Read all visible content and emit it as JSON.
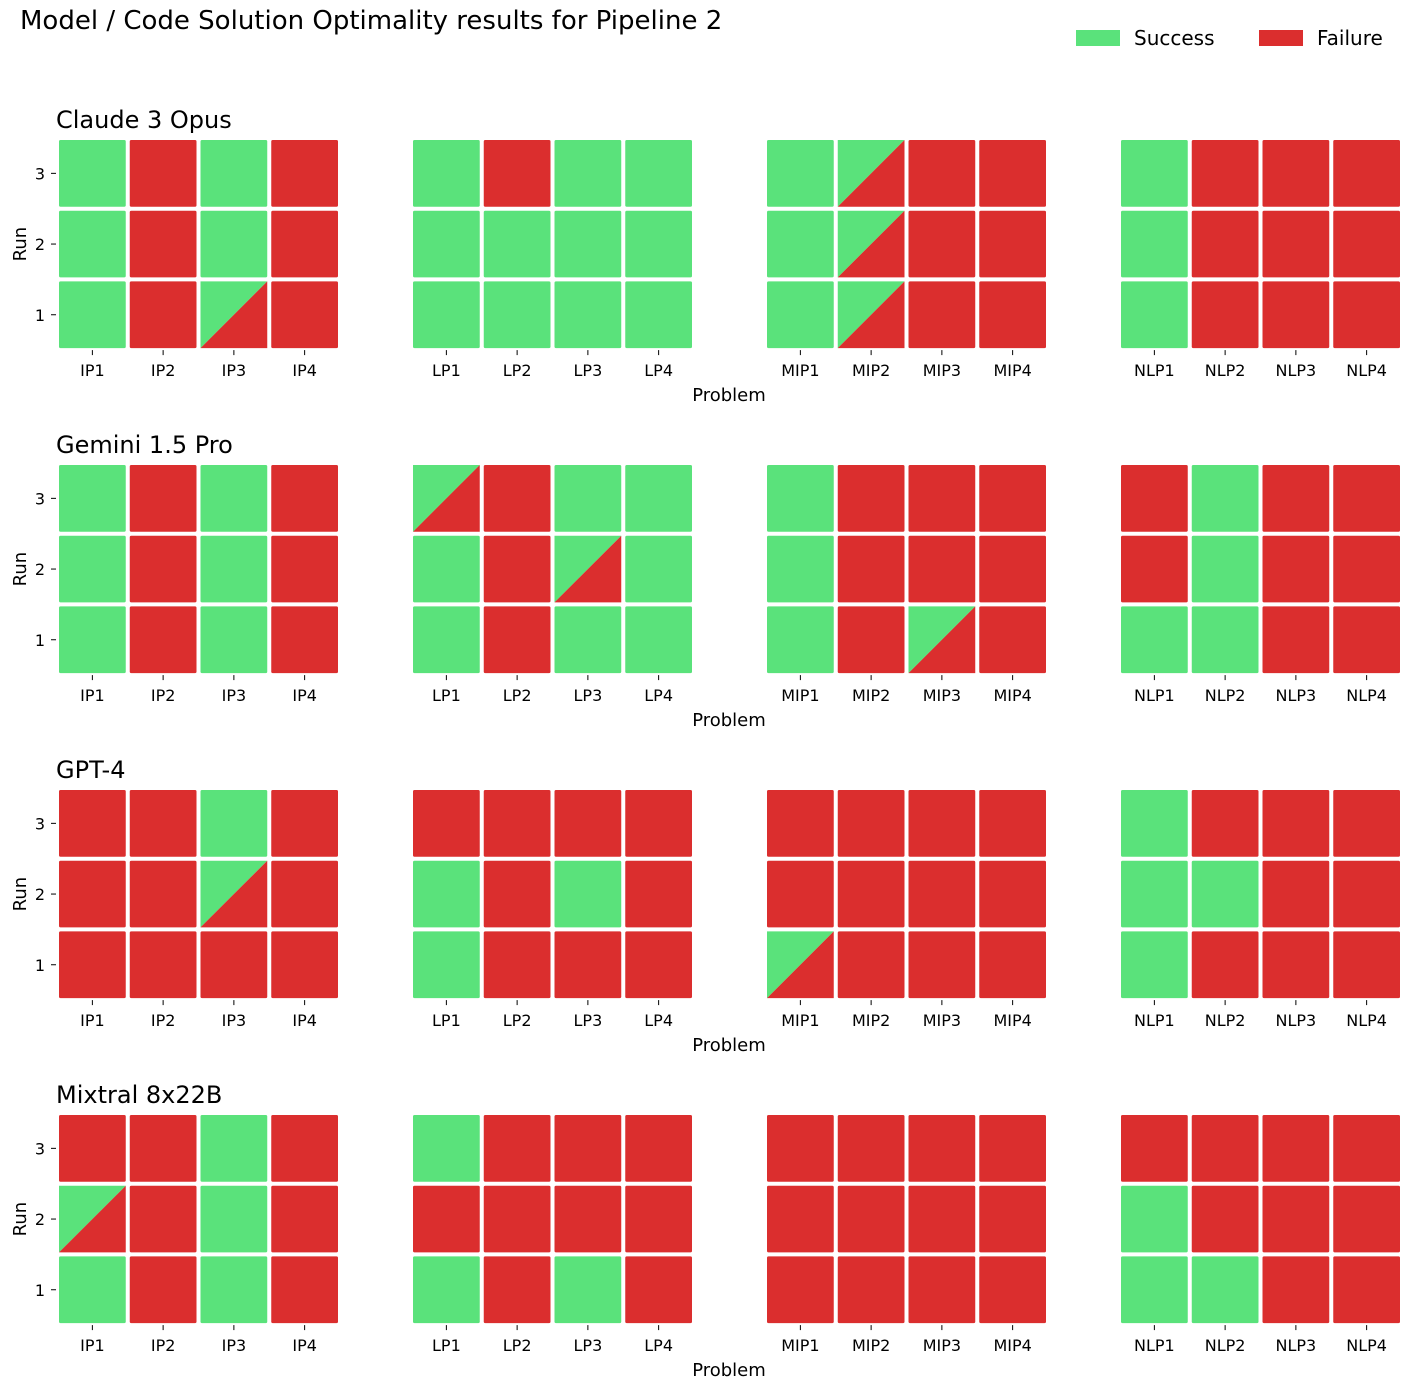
{
  "chart_data": {
    "type": "heatmap",
    "title": "Model / Code Solution Optimality results for Pipeline 2",
    "xlabel": "Problem",
    "ylabel": "Run",
    "legend": {
      "position": "top-right",
      "entries": [
        {
          "label": "Success",
          "color": "#5ae27b"
        },
        {
          "label": "Failure",
          "color": "#db2e2e"
        }
      ]
    },
    "colors": {
      "success": "#5ae27b",
      "failure": "#db2e2e"
    },
    "cell_values": "S = success, F = failure, H = half success / half failure (diagonal split)",
    "runs": [
      "1",
      "2",
      "3"
    ],
    "problem_groups": [
      [
        "IP1",
        "IP2",
        "IP3",
        "IP4"
      ],
      [
        "LP1",
        "LP2",
        "LP3",
        "LP4"
      ],
      [
        "MIP1",
        "MIP2",
        "MIP3",
        "MIP4"
      ],
      [
        "NLP1",
        "NLP2",
        "NLP3",
        "NLP4"
      ]
    ],
    "models": [
      {
        "name": "Claude 3 Opus",
        "results": [
          [
            [
              "S",
              "F",
              "H",
              "F"
            ],
            [
              "S",
              "F",
              "S",
              "F"
            ],
            [
              "S",
              "F",
              "S",
              "F"
            ]
          ],
          [
            [
              "S",
              "S",
              "S",
              "S"
            ],
            [
              "S",
              "S",
              "S",
              "S"
            ],
            [
              "S",
              "F",
              "S",
              "S"
            ]
          ],
          [
            [
              "S",
              "H",
              "F",
              "F"
            ],
            [
              "S",
              "H",
              "F",
              "F"
            ],
            [
              "S",
              "H",
              "F",
              "F"
            ]
          ],
          [
            [
              "S",
              "F",
              "F",
              "F"
            ],
            [
              "S",
              "F",
              "F",
              "F"
            ],
            [
              "S",
              "F",
              "F",
              "F"
            ]
          ]
        ]
      },
      {
        "name": "Gemini 1.5 Pro",
        "results": [
          [
            [
              "S",
              "F",
              "S",
              "F"
            ],
            [
              "S",
              "F",
              "S",
              "F"
            ],
            [
              "S",
              "F",
              "S",
              "F"
            ]
          ],
          [
            [
              "S",
              "F",
              "S",
              "S"
            ],
            [
              "S",
              "F",
              "H",
              "S"
            ],
            [
              "H",
              "F",
              "S",
              "S"
            ]
          ],
          [
            [
              "S",
              "F",
              "H",
              "F"
            ],
            [
              "S",
              "F",
              "F",
              "F"
            ],
            [
              "S",
              "F",
              "F",
              "F"
            ]
          ],
          [
            [
              "S",
              "S",
              "F",
              "F"
            ],
            [
              "F",
              "S",
              "F",
              "F"
            ],
            [
              "F",
              "S",
              "F",
              "F"
            ]
          ]
        ]
      },
      {
        "name": "GPT-4",
        "results": [
          [
            [
              "F",
              "F",
              "F",
              "F"
            ],
            [
              "F",
              "F",
              "H",
              "F"
            ],
            [
              "F",
              "F",
              "S",
              "F"
            ]
          ],
          [
            [
              "S",
              "F",
              "F",
              "F"
            ],
            [
              "S",
              "F",
              "S",
              "F"
            ],
            [
              "F",
              "F",
              "F",
              "F"
            ]
          ],
          [
            [
              "H",
              "F",
              "F",
              "F"
            ],
            [
              "F",
              "F",
              "F",
              "F"
            ],
            [
              "F",
              "F",
              "F",
              "F"
            ]
          ],
          [
            [
              "S",
              "F",
              "F",
              "F"
            ],
            [
              "S",
              "S",
              "F",
              "F"
            ],
            [
              "S",
              "F",
              "F",
              "F"
            ]
          ]
        ]
      },
      {
        "name": "Mixtral 8x22B",
        "results": [
          [
            [
              "S",
              "F",
              "S",
              "F"
            ],
            [
              "H",
              "F",
              "S",
              "F"
            ],
            [
              "F",
              "F",
              "S",
              "F"
            ]
          ],
          [
            [
              "S",
              "F",
              "S",
              "F"
            ],
            [
              "F",
              "F",
              "F",
              "F"
            ],
            [
              "S",
              "F",
              "F",
              "F"
            ]
          ],
          [
            [
              "F",
              "F",
              "F",
              "F"
            ],
            [
              "F",
              "F",
              "F",
              "F"
            ],
            [
              "F",
              "F",
              "F",
              "F"
            ]
          ],
          [
            [
              "S",
              "S",
              "F",
              "F"
            ],
            [
              "S",
              "F",
              "F",
              "F"
            ],
            [
              "F",
              "F",
              "F",
              "F"
            ]
          ]
        ]
      }
    ]
  }
}
